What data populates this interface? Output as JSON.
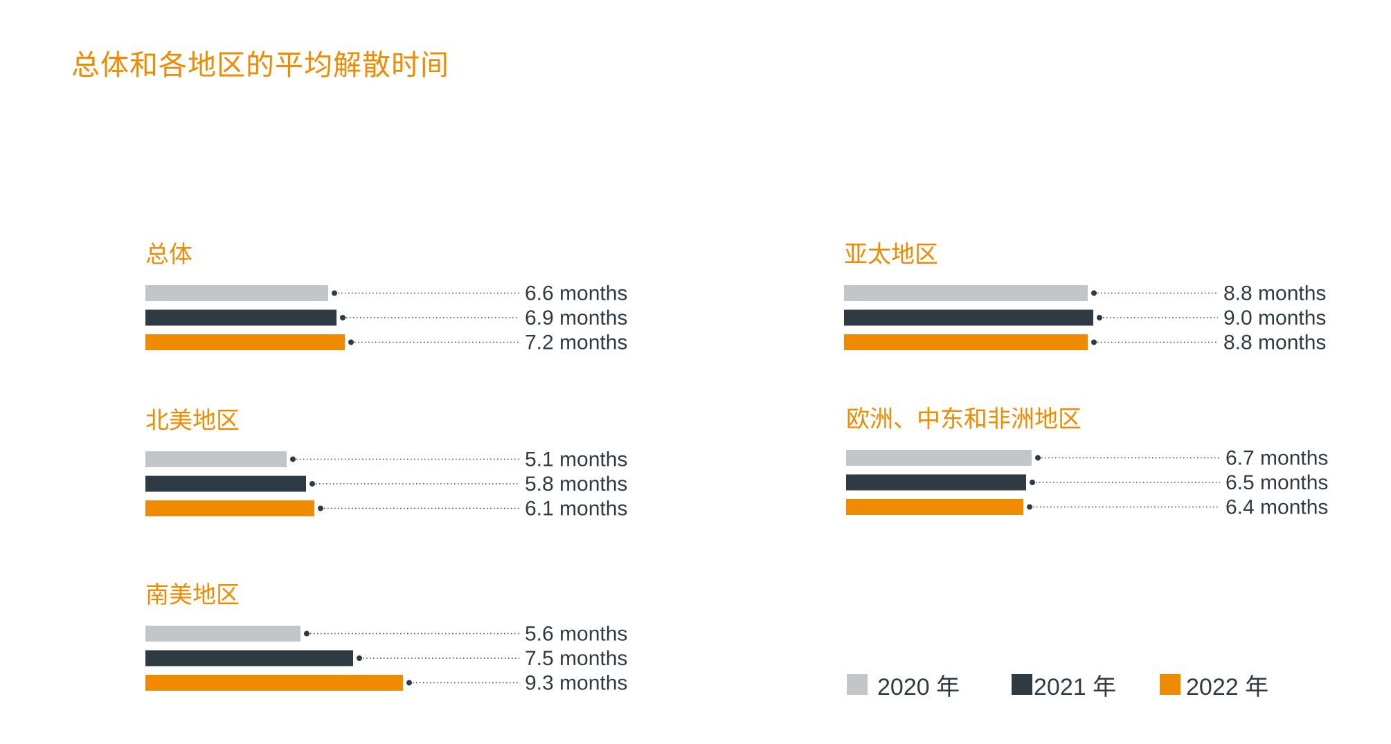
{
  "title": "总体和各地区的平均解散时间",
  "colors": {
    "title": "#f08a00",
    "text": "#2e3a44",
    "series_2020": "#c3c6c8",
    "series_2021": "#2e3a44",
    "series_2022": "#f08a00"
  },
  "legend": {
    "items": [
      {
        "label": "2020 年",
        "color": "#c3c6c8"
      },
      {
        "label": "2021 年",
        "color": "#2e3a44"
      },
      {
        "label": "2022 年",
        "color": "#f08a00"
      }
    ]
  },
  "chart_data": [
    {
      "type": "bar",
      "orientation": "horizontal",
      "title": "总体",
      "categories": [
        "2020 年",
        "2021 年",
        "2022 年"
      ],
      "values": [
        6.6,
        6.9,
        7.2
      ],
      "labels": [
        "6.6 months",
        "6.9 months",
        "7.2 months"
      ],
      "unit": "months",
      "xlim": [
        0,
        12.5
      ]
    },
    {
      "type": "bar",
      "orientation": "horizontal",
      "title": "亚太地区",
      "categories": [
        "2020 年",
        "2021 年",
        "2022 年"
      ],
      "values": [
        8.8,
        9.0,
        8.8
      ],
      "labels": [
        "8.8 months",
        "9.0 months",
        "8.8 months"
      ],
      "unit": "months",
      "xlim": [
        0,
        12.5
      ]
    },
    {
      "type": "bar",
      "orientation": "horizontal",
      "title": "北美地区",
      "categories": [
        "2020 年",
        "2021 年",
        "2022 年"
      ],
      "values": [
        5.1,
        5.8,
        6.1
      ],
      "labels": [
        "5.1 months",
        "5.8 months",
        "6.1 months"
      ],
      "unit": "months",
      "xlim": [
        0,
        12.5
      ]
    },
    {
      "type": "bar",
      "orientation": "horizontal",
      "title": "欧洲、中东和非洲地区",
      "categories": [
        "2020 年",
        "2021 年",
        "2022 年"
      ],
      "values": [
        6.7,
        6.5,
        6.4
      ],
      "labels": [
        "6.7 months",
        "6.5 months",
        "6.4 months"
      ],
      "unit": "months",
      "xlim": [
        0,
        12.5
      ]
    },
    {
      "type": "bar",
      "orientation": "horizontal",
      "title": "南美地区",
      "categories": [
        "2020 年",
        "2021 年",
        "2022 年"
      ],
      "values": [
        5.6,
        7.5,
        9.3
      ],
      "labels": [
        "5.6 months",
        "7.5 months",
        "9.3 months"
      ],
      "unit": "months",
      "xlim": [
        0,
        12.5
      ]
    }
  ]
}
